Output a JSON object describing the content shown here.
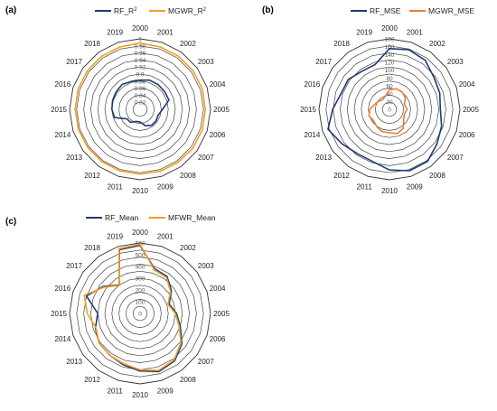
{
  "chart_data": [
    {
      "type": "radar",
      "panel_label": "(a)",
      "categories": [
        "2000",
        "2001",
        "2002",
        "2003",
        "2004",
        "2005",
        "2006",
        "2007",
        "2008",
        "2009",
        "2010",
        "2011",
        "2012",
        "2013",
        "2014",
        "2015",
        "2016",
        "2017",
        "2018",
        "2019"
      ],
      "rlim": [
        0.8,
        1.0
      ],
      "ticks": [
        "0.82",
        "0.84",
        "0.86",
        "0.88",
        "0.9",
        "0.92",
        "0.94",
        "0.96",
        "0.98",
        "1"
      ],
      "grid": true,
      "legend": "top",
      "series": [
        {
          "name": "RF_R",
          "sup": "2",
          "color": "#1f3a73",
          "values": [
            0.883,
            0.887,
            0.887,
            0.886,
            0.886,
            0.864,
            0.854,
            0.856,
            0.856,
            0.849,
            0.836,
            0.836,
            0.846,
            0.846,
            0.876,
            0.88,
            0.882,
            0.884,
            0.887,
            0.883
          ]
        },
        {
          "name": "MGWR_R",
          "sup": "2",
          "color": "#f0a020",
          "values": [
            0.988,
            0.986,
            0.986,
            0.986,
            0.986,
            0.985,
            0.986,
            0.986,
            0.985,
            0.985,
            0.984,
            0.984,
            0.984,
            0.984,
            0.984,
            0.984,
            0.985,
            0.985,
            0.986,
            0.986
          ]
        }
      ]
    },
    {
      "type": "radar",
      "panel_label": "(b)",
      "categories": [
        "2000",
        "2001",
        "2002",
        "2003",
        "2004",
        "2005",
        "2006",
        "2007",
        "2008",
        "2009",
        "2010",
        "2011",
        "2012",
        "2013",
        "2014",
        "2015",
        "2016",
        "2017",
        "2018",
        "2019"
      ],
      "rlim": [
        0,
        180
      ],
      "ticks": [
        "0",
        "20",
        "40",
        "60",
        "80",
        "100",
        "120",
        "140",
        "160",
        "180"
      ],
      "grid": true,
      "legend": "top",
      "series": [
        {
          "name": "RF_MSE",
          "color": "#1f3a73",
          "values": [
            155,
            160,
            155,
            140,
            135,
            130,
            140,
            150,
            165,
            165,
            155,
            140,
            140,
            150,
            165,
            145,
            130,
            130,
            120,
            120
          ]
        },
        {
          "name": "MGWR_MSE",
          "color": "#ed7d31",
          "values": [
            50,
            55,
            55,
            50,
            40,
            45,
            40,
            45,
            60,
            65,
            60,
            60,
            55,
            50,
            55,
            50,
            40,
            35,
            30,
            35
          ]
        }
      ]
    },
    {
      "type": "radar",
      "panel_label": "(c)",
      "categories": [
        "2000",
        "2001",
        "2002",
        "2003",
        "2004",
        "2005",
        "2006",
        "2007",
        "2008",
        "2009",
        "2010",
        "2011",
        "2012",
        "2013",
        "2014",
        "2015",
        "2016",
        "2017",
        "2018",
        "2019"
      ],
      "rlim": [
        0,
        600
      ],
      "ticks": [
        "0",
        "100",
        "200",
        "300",
        "400",
        "500",
        "600"
      ],
      "grid": true,
      "legend": "top",
      "series": [
        {
          "name": "RF_Mean",
          "color": "#1f3a73",
          "values": [
            580,
            400,
            390,
            330,
            260,
            310,
            360,
            440,
            500,
            520,
            490,
            460,
            440,
            430,
            400,
            360,
            480,
            390,
            300,
            570
          ]
        },
        {
          "name": "MFWR_Mean",
          "color": "#f0a020",
          "values": [
            590,
            390,
            380,
            320,
            250,
            300,
            350,
            430,
            490,
            510,
            480,
            450,
            440,
            430,
            395,
            450,
            500,
            380,
            295,
            580
          ]
        }
      ]
    }
  ]
}
